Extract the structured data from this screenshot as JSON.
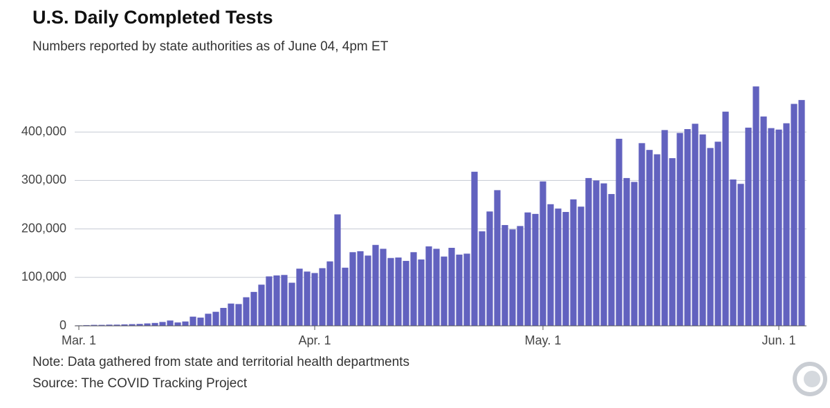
{
  "chart_data": {
    "type": "bar",
    "title": "U.S. Daily Completed Tests",
    "subtitle": "Numbers reported by state authorities as of June 04, 4pm ET",
    "note": "Note: Data gathered from state and territorial health departments",
    "source": "Source: The COVID Tracking Project",
    "color": "#6262bf",
    "grid": true,
    "categories": [
      "Mar. 1",
      null,
      null,
      null,
      null,
      null,
      null,
      null,
      null,
      null,
      null,
      null,
      null,
      null,
      null,
      null,
      null,
      null,
      null,
      null,
      null,
      null,
      null,
      null,
      null,
      null,
      null,
      null,
      null,
      null,
      null,
      "Apr. 1",
      null,
      null,
      null,
      null,
      null,
      null,
      null,
      null,
      null,
      null,
      null,
      null,
      null,
      null,
      null,
      null,
      null,
      null,
      null,
      null,
      null,
      null,
      null,
      null,
      null,
      null,
      null,
      null,
      null,
      "May. 1",
      null,
      null,
      null,
      null,
      null,
      null,
      null,
      null,
      null,
      null,
      null,
      null,
      null,
      null,
      null,
      null,
      null,
      null,
      null,
      null,
      null,
      null,
      null,
      null,
      null,
      null,
      null,
      null,
      null,
      null,
      "Jun. 1",
      null,
      null,
      null
    ],
    "values": [
      1000,
      1500,
      2000,
      2000,
      2500,
      2500,
      3000,
      3500,
      4000,
      5000,
      6000,
      8000,
      11000,
      7000,
      9000,
      19000,
      17000,
      25000,
      29000,
      37000,
      46000,
      45000,
      59000,
      70000,
      85000,
      102000,
      104000,
      105000,
      89000,
      118000,
      112000,
      109000,
      119000,
      133000,
      230000,
      120000,
      152000,
      154000,
      145000,
      167000,
      159000,
      140000,
      141000,
      134000,
      152000,
      137000,
      164000,
      159000,
      143000,
      161000,
      147000,
      149000,
      318000,
      195000,
      236000,
      280000,
      208000,
      199000,
      206000,
      234000,
      231000,
      298000,
      251000,
      242000,
      235000,
      261000,
      246000,
      305000,
      300000,
      294000,
      272000,
      386000,
      305000,
      297000,
      377000,
      363000,
      354000,
      404000,
      346000,
      398000,
      406000,
      417000,
      395000,
      367000,
      380000,
      442000,
      302000,
      293000,
      409000,
      494000,
      432000,
      408000,
      405000,
      418000,
      458000,
      466000
    ],
    "ylim": [
      0,
      500000
    ],
    "yticks": [
      0,
      {
        "value": 100000,
        "label": "100,000"
      },
      {
        "value": 200000,
        "label": "200,000"
      },
      {
        "value": 300000,
        "label": "300,000"
      },
      {
        "value": 400000,
        "label": "400,000"
      }
    ]
  }
}
